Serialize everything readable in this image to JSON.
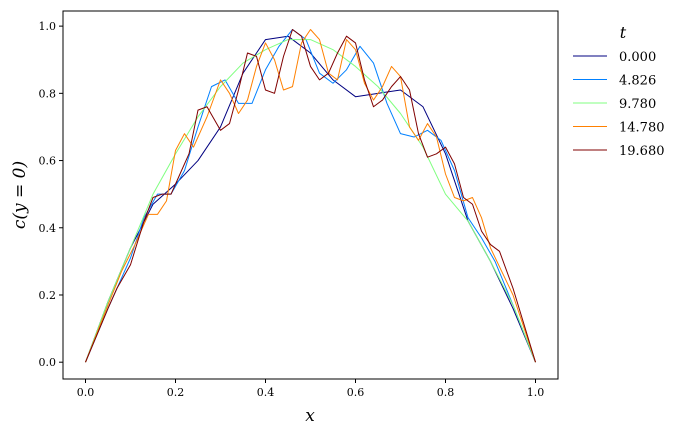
{
  "chart_data": {
    "type": "line",
    "xlabel": "x",
    "ylabel": "c(y = 0)",
    "xlim": [
      -0.05,
      1.05
    ],
    "ylim": [
      -0.05,
      1.045
    ],
    "xticks": [
      0.0,
      0.2,
      0.4,
      0.6,
      0.8,
      1.0
    ],
    "xtick_labels": [
      "0.0",
      "0.2",
      "0.4",
      "0.6",
      "0.8",
      "1.0"
    ],
    "yticks": [
      0.0,
      0.2,
      0.4,
      0.6,
      0.8,
      1.0
    ],
    "ytick_labels": [
      "0.0",
      "0.2",
      "0.4",
      "0.6",
      "0.8",
      "1.0"
    ],
    "grid": false,
    "legend_title": "t",
    "legend_placement": "outside-right",
    "series": [
      {
        "name": "0.000",
        "color": "#000080",
        "x": [
          0.0,
          0.05,
          0.1,
          0.15,
          0.2,
          0.25,
          0.3,
          0.35,
          0.4,
          0.45,
          0.5,
          0.55,
          0.6,
          0.65,
          0.7,
          0.75,
          0.8,
          0.85,
          0.9,
          0.95,
          1.0
        ],
        "y": [
          0.0,
          0.18,
          0.34,
          0.47,
          0.53,
          0.6,
          0.7,
          0.86,
          0.96,
          0.97,
          0.92,
          0.84,
          0.79,
          0.8,
          0.81,
          0.76,
          0.62,
          0.42,
          0.3,
          0.16,
          0.0
        ]
      },
      {
        "name": "4.826",
        "color": "#0080ff",
        "x": [
          0.0,
          0.05,
          0.1,
          0.13,
          0.16,
          0.19,
          0.22,
          0.25,
          0.28,
          0.31,
          0.34,
          0.37,
          0.4,
          0.43,
          0.46,
          0.49,
          0.52,
          0.55,
          0.58,
          0.61,
          0.64,
          0.67,
          0.7,
          0.73,
          0.76,
          0.79,
          0.82,
          0.85,
          0.88,
          0.91,
          0.95,
          1.0
        ],
        "y": [
          0.0,
          0.16,
          0.31,
          0.43,
          0.5,
          0.5,
          0.57,
          0.7,
          0.82,
          0.84,
          0.77,
          0.77,
          0.87,
          0.94,
          0.99,
          0.96,
          0.86,
          0.83,
          0.87,
          0.94,
          0.89,
          0.77,
          0.68,
          0.67,
          0.69,
          0.66,
          0.57,
          0.43,
          0.37,
          0.3,
          0.17,
          0.0
        ]
      },
      {
        "name": "9.780",
        "color": "#80ff80",
        "x": [
          0.0,
          0.05,
          0.1,
          0.15,
          0.2,
          0.25,
          0.3,
          0.35,
          0.4,
          0.45,
          0.5,
          0.55,
          0.6,
          0.65,
          0.7,
          0.75,
          0.8,
          0.85,
          0.9,
          0.95,
          1.0
        ],
        "y": [
          0.0,
          0.18,
          0.34,
          0.5,
          0.62,
          0.73,
          0.82,
          0.89,
          0.93,
          0.96,
          0.96,
          0.93,
          0.88,
          0.82,
          0.74,
          0.64,
          0.5,
          0.42,
          0.3,
          0.17,
          0.0
        ]
      },
      {
        "name": "14.780",
        "color": "#ff8000",
        "x": [
          0.0,
          0.05,
          0.08,
          0.11,
          0.14,
          0.16,
          0.18,
          0.2,
          0.22,
          0.24,
          0.27,
          0.3,
          0.32,
          0.34,
          0.36,
          0.38,
          0.4,
          0.42,
          0.44,
          0.46,
          0.48,
          0.5,
          0.52,
          0.54,
          0.56,
          0.58,
          0.6,
          0.62,
          0.64,
          0.66,
          0.68,
          0.7,
          0.72,
          0.74,
          0.76,
          0.78,
          0.8,
          0.82,
          0.84,
          0.86,
          0.88,
          0.9,
          0.95,
          1.0
        ],
        "y": [
          0.0,
          0.17,
          0.27,
          0.35,
          0.44,
          0.44,
          0.48,
          0.63,
          0.68,
          0.64,
          0.73,
          0.84,
          0.8,
          0.74,
          0.78,
          0.88,
          0.95,
          0.9,
          0.81,
          0.82,
          0.95,
          0.99,
          0.96,
          0.86,
          0.84,
          0.96,
          0.93,
          0.83,
          0.78,
          0.82,
          0.88,
          0.85,
          0.7,
          0.66,
          0.71,
          0.67,
          0.56,
          0.49,
          0.48,
          0.49,
          0.43,
          0.34,
          0.2,
          0.0
        ]
      },
      {
        "name": "19.680",
        "color": "#800000",
        "x": [
          0.0,
          0.05,
          0.07,
          0.1,
          0.13,
          0.15,
          0.17,
          0.19,
          0.21,
          0.23,
          0.25,
          0.27,
          0.3,
          0.32,
          0.34,
          0.36,
          0.38,
          0.4,
          0.42,
          0.44,
          0.46,
          0.48,
          0.5,
          0.52,
          0.54,
          0.56,
          0.58,
          0.6,
          0.62,
          0.64,
          0.66,
          0.68,
          0.7,
          0.72,
          0.74,
          0.76,
          0.78,
          0.8,
          0.82,
          0.84,
          0.86,
          0.88,
          0.9,
          0.92,
          0.95,
          1.0
        ],
        "y": [
          0.0,
          0.16,
          0.22,
          0.29,
          0.42,
          0.49,
          0.5,
          0.5,
          0.56,
          0.62,
          0.75,
          0.76,
          0.69,
          0.71,
          0.81,
          0.92,
          0.91,
          0.81,
          0.8,
          0.91,
          0.99,
          0.97,
          0.88,
          0.84,
          0.86,
          0.92,
          0.97,
          0.95,
          0.84,
          0.76,
          0.78,
          0.82,
          0.85,
          0.81,
          0.68,
          0.61,
          0.62,
          0.64,
          0.59,
          0.49,
          0.47,
          0.39,
          0.35,
          0.33,
          0.22,
          0.0
        ]
      }
    ]
  }
}
